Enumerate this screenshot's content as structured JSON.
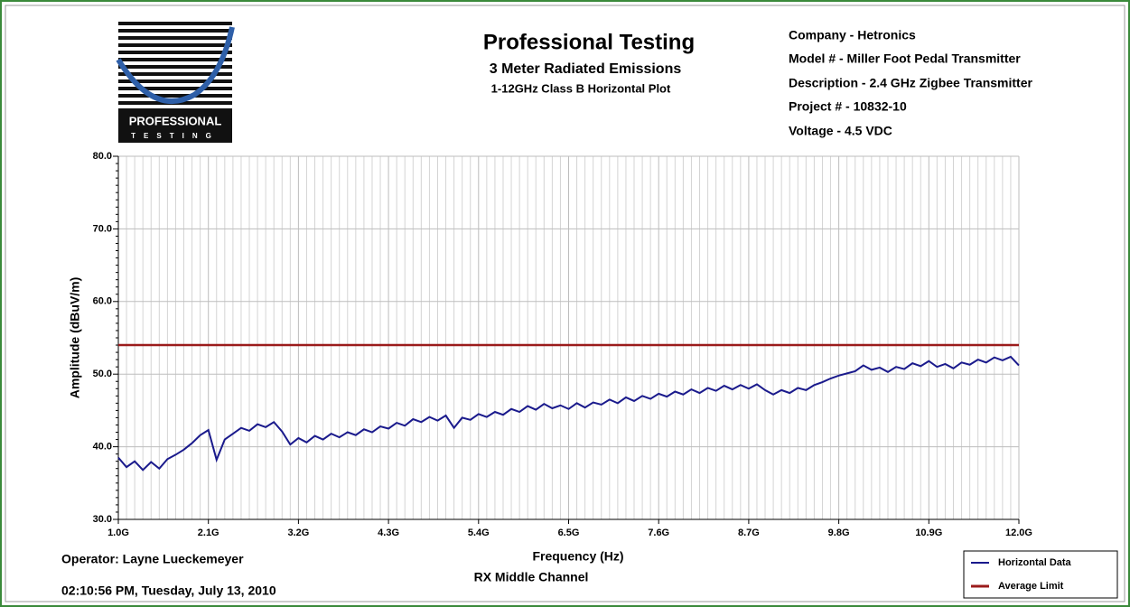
{
  "chart_data": {
    "type": "line",
    "title": "Professional Testing",
    "subtitle": "3 Meter Radiated Emissions",
    "subtitle2": "1-12GHz Class B Horizontal Plot",
    "logo": {
      "text": "PROFESSIONAL",
      "subtext": "TESTING"
    },
    "info": [
      "Company - Hetronics",
      "Model # - Miller Foot Pedal Transmitter",
      "Description - 2.4 GHz Zigbee Transmitter",
      "Project # - 10832-10",
      "Voltage - 4.5 VDC"
    ],
    "xlabel": "Frequency (Hz)",
    "ylabel": "Amplitude (dBuV/m)",
    "operator": "Operator: Layne Lueckemeyer",
    "timestamp": "02:10:56 PM, Tuesday, July 13, 2010",
    "note": "RX Middle Channel",
    "xlim": [
      1000000000.0,
      12000000000.0
    ],
    "ylim": [
      30,
      80
    ],
    "xticks": [
      {
        "value": 1000000000.0,
        "label": "1.0G"
      },
      {
        "value": 2100000000.0,
        "label": "2.1G"
      },
      {
        "value": 3200000000.0,
        "label": "3.2G"
      },
      {
        "value": 4300000000.0,
        "label": "4.3G"
      },
      {
        "value": 5400000000.0,
        "label": "5.4G"
      },
      {
        "value": 6500000000.0,
        "label": "6.5G"
      },
      {
        "value": 7600000000.0,
        "label": "7.6G"
      },
      {
        "value": 8700000000.0,
        "label": "8.7G"
      },
      {
        "value": 9800000000.0,
        "label": "9.8G"
      },
      {
        "value": 10900000000.0,
        "label": "10.9G"
      },
      {
        "value": 12000000000.0,
        "label": "12.0G"
      }
    ],
    "yticks": [
      {
        "value": 30,
        "label": "30.0"
      },
      {
        "value": 40,
        "label": "40.0"
      },
      {
        "value": 50,
        "label": "50.0"
      },
      {
        "value": 60,
        "label": "60.0"
      },
      {
        "value": 70,
        "label": "70.0"
      },
      {
        "value": 80,
        "label": "80.0"
      }
    ],
    "grid": true,
    "legend": "bottom-right",
    "series": [
      {
        "name": "Horizontal Data",
        "color": "#1a1a8c",
        "x": [
          1000000000.0,
          1100000000.0,
          1200000000.0,
          1300000000.0,
          1400000000.0,
          1500000000.0,
          1600000000.0,
          1700000000.0,
          1800000000.0,
          1900000000.0,
          2000000000.0,
          2100000000.0,
          2200000000.0,
          2300000000.0,
          2400000000.0,
          2500000000.0,
          2600000000.0,
          2700000000.0,
          2800000000.0,
          2900000000.0,
          3000000000.0,
          3100000000.0,
          3200000000.0,
          3300000000.0,
          3400000000.0,
          3500000000.0,
          3600000000.0,
          3700000000.0,
          3800000000.0,
          3900000000.0,
          4000000000.0,
          4100000000.0,
          4200000000.0,
          4300000000.0,
          4400000000.0,
          4500000000.0,
          4600000000.0,
          4700000000.0,
          4800000000.0,
          4900000000.0,
          5000000000.0,
          5100000000.0,
          5200000000.0,
          5300000000.0,
          5400000000.0,
          5500000000.0,
          5600000000.0,
          5700000000.0,
          5800000000.0,
          5900000000.0,
          6000000000.0,
          6100000000.0,
          6200000000.0,
          6300000000.0,
          6400000000.0,
          6500000000.0,
          6600000000.0,
          6700000000.0,
          6800000000.0,
          6900000000.0,
          7000000000.0,
          7100000000.0,
          7200000000.0,
          7300000000.0,
          7400000000.0,
          7500000000.0,
          7600000000.0,
          7700000000.0,
          7800000000.0,
          7900000000.0,
          8000000000.0,
          8100000000.0,
          8200000000.0,
          8300000000.0,
          8400000000.0,
          8500000000.0,
          8600000000.0,
          8700000000.0,
          8800000000.0,
          8900000000.0,
          9000000000.0,
          9100000000.0,
          9200000000.0,
          9300000000.0,
          9400000000.0,
          9500000000.0,
          9600000000.0,
          9700000000.0,
          9800000000.0,
          9900000000.0,
          10000000000.0,
          10100000000.0,
          10200000000.0,
          10300000000.0,
          10400000000.0,
          10500000000.0,
          10600000000.0,
          10700000000.0,
          10800000000.0,
          10900000000.0,
          11000000000.0,
          11100000000.0,
          11200000000.0,
          11300000000.0,
          11400000000.0,
          11500000000.0,
          11600000000.0,
          11700000000.0,
          11800000000.0,
          11900000000.0,
          12000000000.0
        ],
        "values": [
          38.5,
          37.2,
          38.0,
          36.8,
          37.9,
          37.0,
          38.3,
          38.9,
          39.6,
          40.5,
          41.6,
          42.3,
          38.2,
          41.0,
          41.8,
          42.6,
          42.2,
          43.1,
          42.7,
          43.4,
          42.1,
          40.3,
          41.2,
          40.6,
          41.5,
          41.0,
          41.8,
          41.3,
          42.0,
          41.6,
          42.4,
          42.0,
          42.8,
          42.5,
          43.3,
          42.9,
          43.8,
          43.4,
          44.1,
          43.6,
          44.3,
          42.6,
          44.0,
          43.7,
          44.5,
          44.1,
          44.8,
          44.4,
          45.2,
          44.8,
          45.6,
          45.1,
          45.9,
          45.3,
          45.7,
          45.2,
          46.0,
          45.4,
          46.1,
          45.8,
          46.5,
          46.0,
          46.8,
          46.3,
          47.0,
          46.6,
          47.3,
          46.9,
          47.6,
          47.2,
          47.9,
          47.4,
          48.1,
          47.7,
          48.4,
          47.9,
          48.5,
          48.0,
          48.6,
          47.8,
          47.2,
          47.8,
          47.4,
          48.1,
          47.8,
          48.5,
          48.9,
          49.4,
          49.8,
          50.1,
          50.4,
          51.2,
          50.6,
          50.9,
          50.3,
          51.0,
          50.7,
          51.5,
          51.1,
          51.8,
          51.0,
          51.4,
          50.8,
          51.6,
          51.3,
          52.0,
          51.6,
          52.3,
          51.9,
          52.4,
          51.2
        ]
      },
      {
        "name": "Average Limit",
        "color": "#9b1b1b",
        "x": [
          1000000000.0,
          12000000000.0
        ],
        "values": [
          54,
          54
        ]
      }
    ]
  }
}
